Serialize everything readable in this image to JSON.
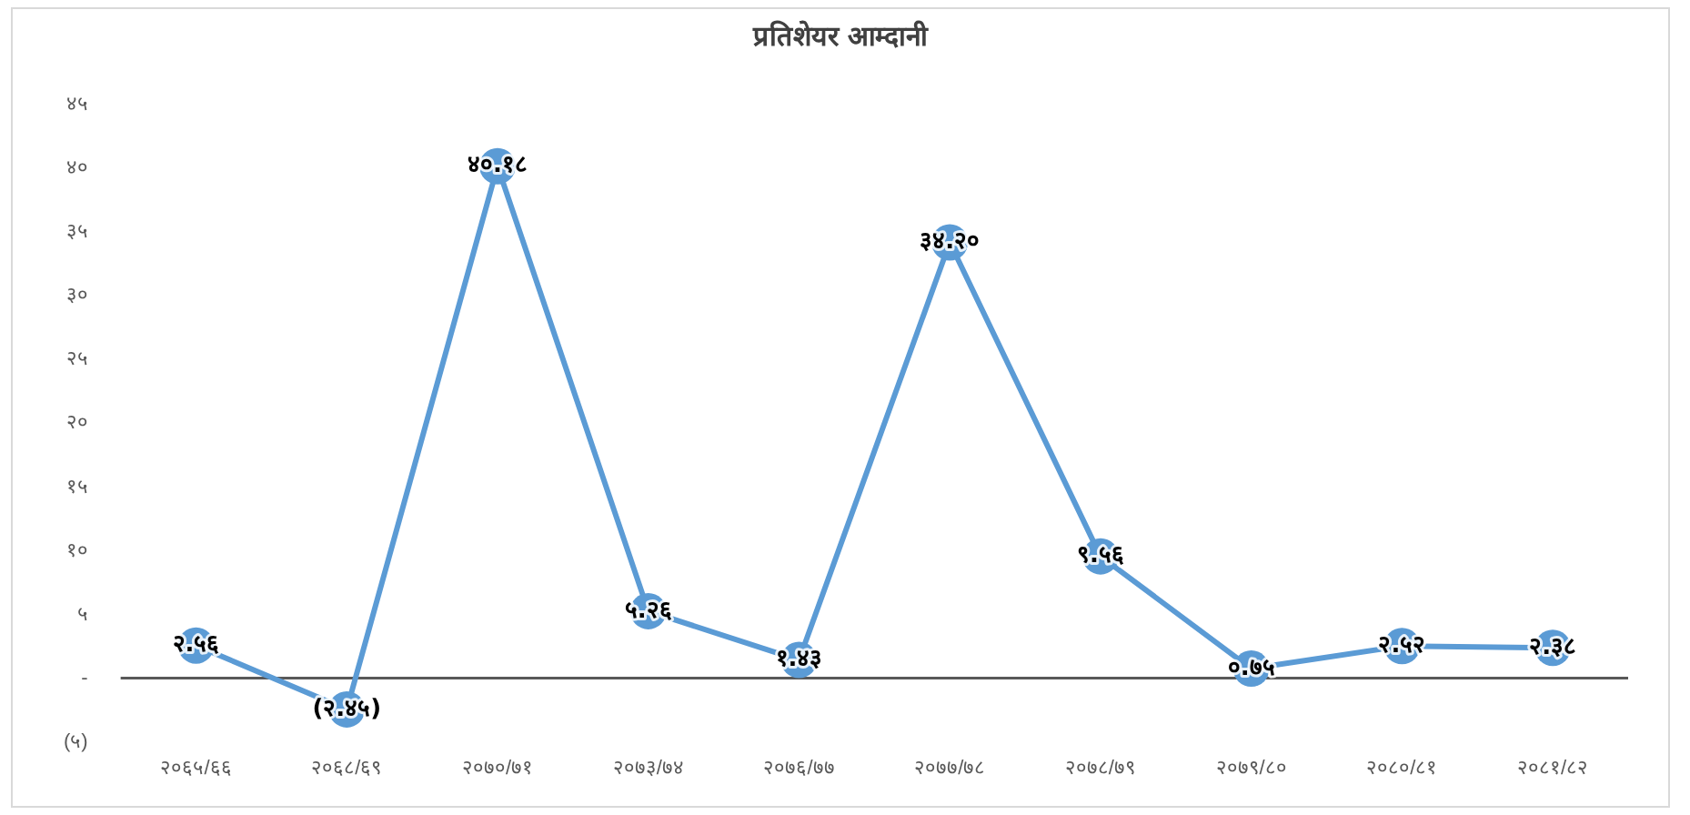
{
  "chart_data": {
    "type": "line",
    "title": "प्रतिशेयर आम्दानी",
    "categories": [
      "२०६५/६६",
      "२०६८/६९",
      "२०७०/७१",
      "२०७३/७४",
      "२०७६/७७",
      "२०७७/७८",
      "२०७८/७९",
      "२०७९/८०",
      "२०८०/८१",
      "२०८१/८२"
    ],
    "series": [
      {
        "color": "#5b9bd5",
        "values": [
          2.56,
          -2.45,
          40.18,
          5.26,
          1.43,
          34.2,
          9.56,
          0.75,
          2.52,
          2.38
        ],
        "value_labels": [
          "२.५६",
          "(२.४५)",
          "४०.१८",
          "५.२६",
          "१.४३",
          "३४.२०",
          "९.५६",
          "०.७५",
          "२.५२",
          "२.३८"
        ]
      }
    ],
    "ylim": [
      -5,
      45
    ],
    "yticks": [
      {
        "value": -5,
        "label": "(५)"
      },
      {
        "value": 0,
        "label": "-"
      },
      {
        "value": 5,
        "label": "५"
      },
      {
        "value": 10,
        "label": "१०"
      },
      {
        "value": 15,
        "label": "१५"
      },
      {
        "value": 20,
        "label": "२०"
      },
      {
        "value": 25,
        "label": "२५"
      },
      {
        "value": 30,
        "label": "३०"
      },
      {
        "value": 35,
        "label": "३५"
      },
      {
        "value": 40,
        "label": "४०"
      },
      {
        "value": 45,
        "label": "४५"
      }
    ],
    "ref_lines": [
      {
        "axis": "y",
        "value": 0,
        "color": "#595959"
      }
    ],
    "grid": false,
    "legend": false,
    "marker": "circle",
    "line_style": "solid"
  }
}
